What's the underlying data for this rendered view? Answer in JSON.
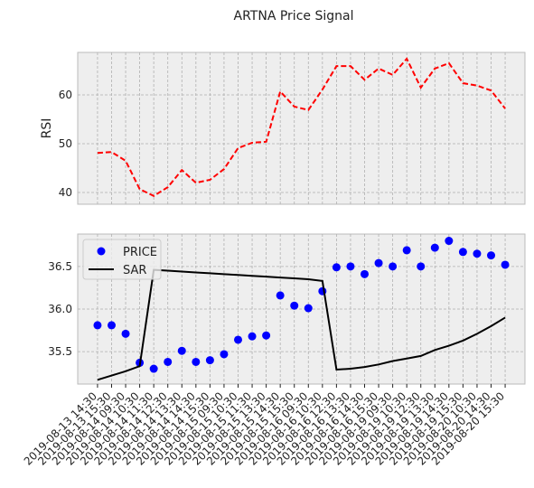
{
  "title": "ARTNA Price Signal",
  "chart_data": [
    {
      "type": "line",
      "ylabel": "RSI",
      "color": "#ff0000",
      "linestyle": "dashed",
      "grid": true,
      "ylim": [
        37.6,
        68.7
      ],
      "yticks": [
        40,
        50,
        60
      ],
      "values": [
        48.1,
        48.3,
        46.5,
        40.7,
        39.3,
        41.1,
        44.6,
        42.0,
        42.6,
        44.8,
        49.1,
        50.2,
        50.4,
        60.7,
        57.6,
        56.9,
        61.1,
        65.9,
        65.9,
        63.1,
        65.4,
        64.1,
        67.4,
        61.5,
        65.4,
        66.5,
        62.4,
        61.9,
        60.9,
        57.2
      ]
    },
    {
      "type": "combo",
      "grid": true,
      "legend": "upper left",
      "ylim": [
        35.12,
        36.88
      ],
      "yticks": [
        35.5,
        {
          "value": 36.0,
          "label": "36.0"
        },
        36.5
      ],
      "categories": [
        "2019-08-13 14:30",
        "2019-08-13 15:30",
        "2019-08-14 09:30",
        "2019-08-14 10:30",
        "2019-08-14 11:30",
        "2019-08-14 12:30",
        "2019-08-14 13:30",
        "2019-08-14 14:30",
        "2019-08-14 15:30",
        "2019-08-15 09:30",
        "2019-08-15 10:30",
        "2019-08-15 11:30",
        "2019-08-15 13:30",
        "2019-08-15 14:30",
        "2019-08-15 15:30",
        "2019-08-16 09:30",
        "2019-08-16 10:30",
        "2019-08-16 12:30",
        "2019-08-16 13:30",
        "2019-08-16 14:30",
        "2019-08-16 15:30",
        "2019-08-19 09:30",
        "2019-08-19 10:30",
        "2019-08-19 12:30",
        "2019-08-19 13:30",
        "2019-08-19 14:30",
        "2019-08-19 15:30",
        "2019-08-20 10:30",
        "2019-08-20 14:30",
        "2019-08-20 15:30"
      ],
      "series": [
        {
          "name": "PRICE",
          "type": "scatter",
          "color": "#0000ff",
          "values": [
            35.81,
            35.81,
            35.71,
            35.37,
            35.3,
            35.38,
            35.51,
            35.38,
            35.4,
            35.47,
            35.64,
            35.68,
            35.69,
            36.16,
            36.04,
            36.01,
            36.21,
            36.49,
            36.5,
            36.41,
            36.54,
            36.5,
            36.69,
            36.5,
            36.72,
            36.8,
            36.67,
            36.65,
            36.63,
            36.52
          ]
        },
        {
          "name": "SAR",
          "type": "line",
          "color": "#000000",
          "values": [
            35.17,
            35.22,
            35.27,
            35.33,
            36.46,
            36.45,
            36.44,
            36.43,
            36.42,
            36.41,
            36.4,
            36.39,
            36.38,
            36.37,
            36.36,
            36.35,
            36.33,
            35.29,
            35.3,
            35.32,
            35.35,
            35.39,
            35.42,
            35.45,
            35.52,
            35.57,
            35.63,
            35.71,
            35.8,
            35.9
          ]
        }
      ]
    }
  ]
}
